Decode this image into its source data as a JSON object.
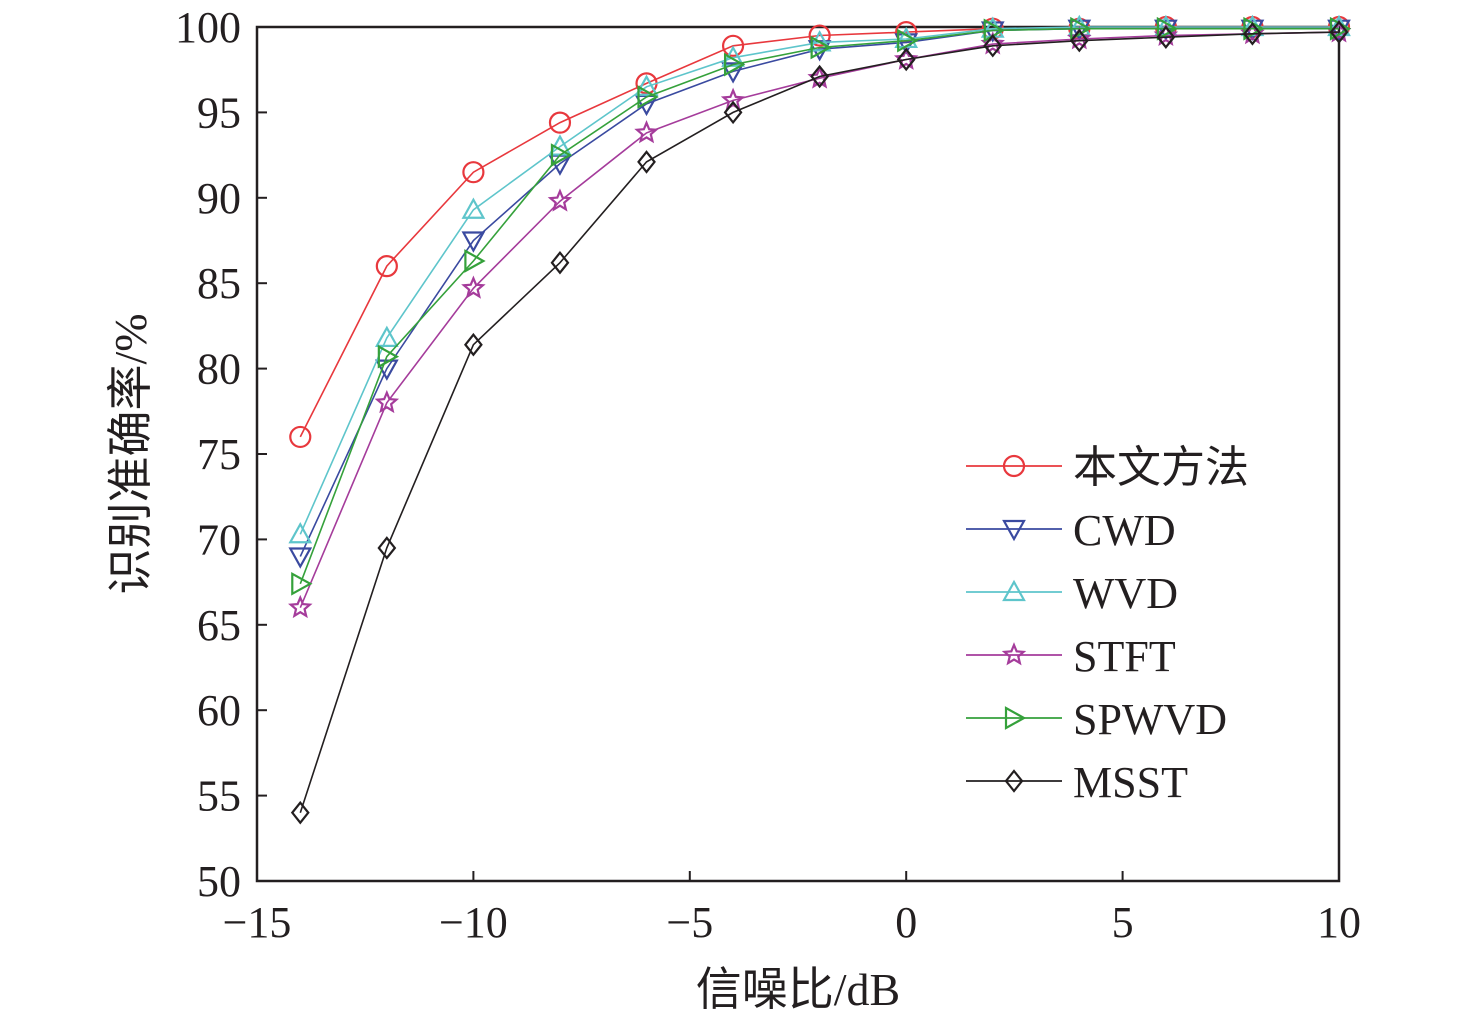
{
  "chart_data": {
    "type": "line",
    "xlabel": "信噪比/dB",
    "ylabel": "识别准确率/%",
    "xlim": [
      -15,
      10
    ],
    "ylim": [
      50,
      100
    ],
    "xticks": [
      -15,
      -10,
      -5,
      0,
      5,
      10
    ],
    "xtick_labels": [
      "−15",
      "−10",
      "−5",
      "0",
      "5",
      "10"
    ],
    "yticks": [
      50,
      55,
      60,
      65,
      70,
      75,
      80,
      85,
      90,
      95,
      100
    ],
    "ytick_labels": [
      "50",
      "55",
      "60",
      "65",
      "70",
      "75",
      "80",
      "85",
      "90",
      "95",
      "100"
    ],
    "grid": false,
    "legend_position": "right",
    "x": [
      -14,
      -12,
      -10,
      -8,
      -6,
      -4,
      -2,
      0,
      2,
      4,
      6,
      8,
      10
    ],
    "series": [
      {
        "name": "本文方法",
        "color": "#e8383d",
        "marker": "circle",
        "values": [
          76,
          86,
          91.5,
          94.4,
          96.7,
          98.9,
          99.5,
          99.7,
          99.9,
          99.9,
          100,
          100,
          100
        ]
      },
      {
        "name": "CWD",
        "color": "#3a4aa0",
        "marker": "triangle-down",
        "values": [
          69,
          80,
          87.5,
          92,
          95.5,
          97.4,
          98.7,
          99.1,
          99.8,
          99.9,
          99.9,
          99.9,
          99.9
        ]
      },
      {
        "name": "WVD",
        "color": "#5ec5cb",
        "marker": "triangle-up",
        "values": [
          70.3,
          81.8,
          89.3,
          93,
          96.5,
          98.2,
          99.1,
          99.3,
          99.9,
          100,
          100,
          100,
          100
        ]
      },
      {
        "name": "STFT",
        "color": "#a53c9b",
        "marker": "star",
        "values": [
          66,
          78,
          84.7,
          89.8,
          93.8,
          95.7,
          97,
          98.1,
          99,
          99.3,
          99.5,
          99.6,
          99.7
        ]
      },
      {
        "name": "SPWVD",
        "color": "#35a13b",
        "marker": "triangle-right",
        "values": [
          67.4,
          80.7,
          86.3,
          92.5,
          95.9,
          97.8,
          98.8,
          99.2,
          99.8,
          99.9,
          99.9,
          99.9,
          99.9
        ]
      },
      {
        "name": "MSST",
        "color": "#231f20",
        "marker": "diamond",
        "values": [
          54,
          69.5,
          81.4,
          86.2,
          92.1,
          95,
          97.1,
          98.1,
          98.9,
          99.2,
          99.4,
          99.6,
          99.7
        ]
      }
    ]
  }
}
